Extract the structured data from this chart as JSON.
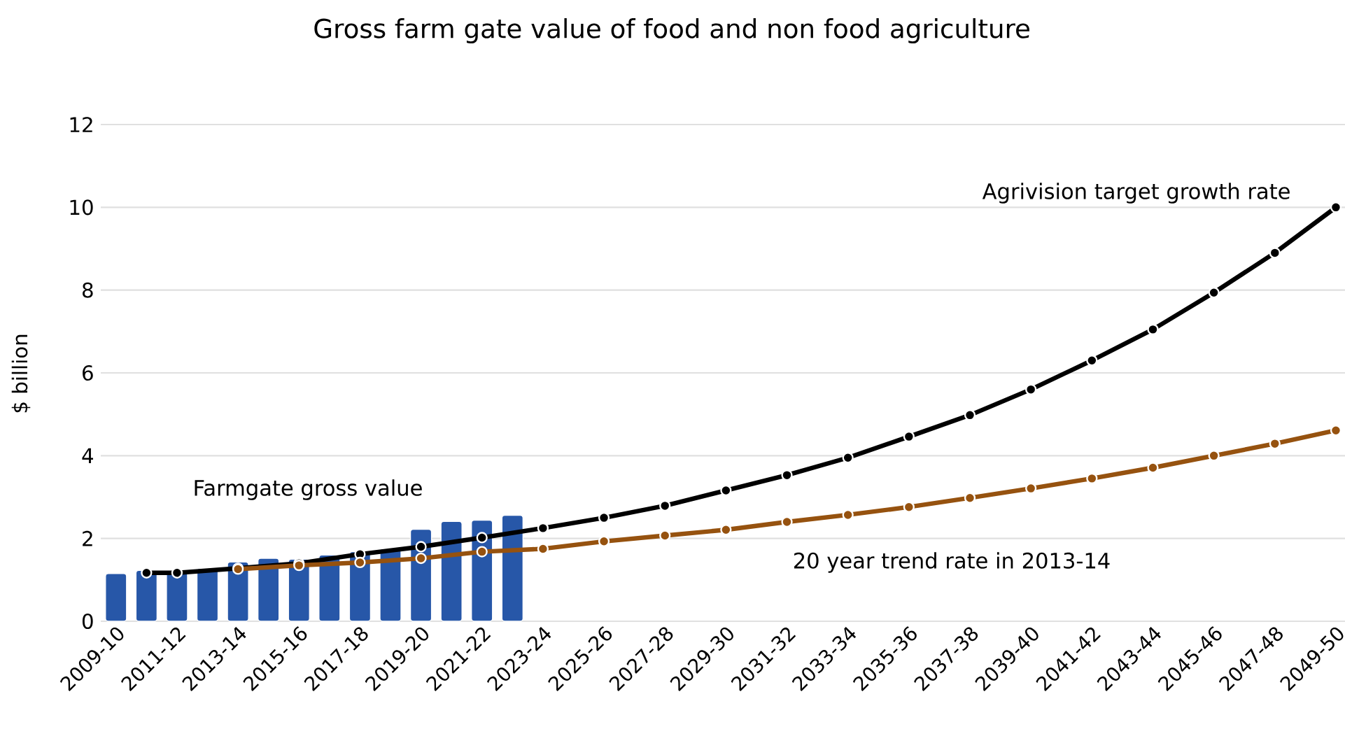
{
  "chart_data": {
    "type": "bar",
    "title": "Gross farm gate value of food and non food agriculture",
    "ylabel": "$ billion",
    "categories": [
      "2009-10",
      null,
      "2011-12",
      null,
      "2013-14",
      null,
      "2015-16",
      null,
      "2017-18",
      null,
      "2019-20",
      null,
      "2021-22",
      null,
      "2023-24",
      null,
      "2025-26",
      null,
      "2027-28",
      null,
      "2029-30",
      null,
      "2031-32",
      null,
      "2033-34",
      null,
      "2035-36",
      null,
      "2037-38",
      null,
      "2039-40",
      null,
      "2041-42",
      null,
      "2043-44",
      null,
      "2045-46",
      null,
      "2047-48",
      null,
      "2049-50"
    ],
    "series": [
      {
        "name": "Farmgate gross value",
        "color": "#2757a8",
        "values": [
          1.15,
          1.23,
          1.2,
          1.28,
          1.43,
          1.52,
          1.5,
          1.6,
          1.68,
          1.75,
          2.22,
          2.41,
          2.44,
          2.56,
          null,
          null,
          null,
          null,
          null,
          null,
          null,
          null,
          null,
          null,
          null,
          null,
          null,
          null,
          null,
          null,
          null,
          null,
          null,
          null,
          null,
          null,
          null,
          null,
          null,
          null,
          null
        ]
      },
      {
        "name": "Agrivision target growth rate",
        "type": "line",
        "color": "#000000",
        "values": [
          null,
          1.17,
          1.17,
          null,
          1.28,
          null,
          1.4,
          null,
          1.62,
          null,
          1.8,
          null,
          2.02,
          null,
          2.25,
          null,
          2.5,
          null,
          2.79,
          null,
          3.16,
          null,
          3.53,
          null,
          3.95,
          null,
          4.46,
          null,
          4.98,
          null,
          5.6,
          null,
          6.3,
          null,
          7.05,
          null,
          7.94,
          null,
          8.9,
          null,
          10.0
        ]
      },
      {
        "name": "20 year trend rate in 2013-14",
        "type": "line",
        "color": "#96520f",
        "values": [
          null,
          null,
          null,
          null,
          1.26,
          null,
          1.35,
          null,
          1.42,
          null,
          1.52,
          null,
          1.68,
          null,
          1.75,
          null,
          1.93,
          null,
          2.07,
          null,
          2.21,
          null,
          2.4,
          null,
          2.57,
          null,
          2.76,
          null,
          2.98,
          null,
          3.21,
          null,
          3.45,
          null,
          3.71,
          null,
          4.0,
          null,
          4.29,
          null,
          4.61
        ]
      }
    ],
    "ylim": [
      0,
      12
    ],
    "yticks": [
      0,
      2,
      4,
      6,
      8,
      10,
      12
    ],
    "grid": "y",
    "marker": "circle"
  }
}
